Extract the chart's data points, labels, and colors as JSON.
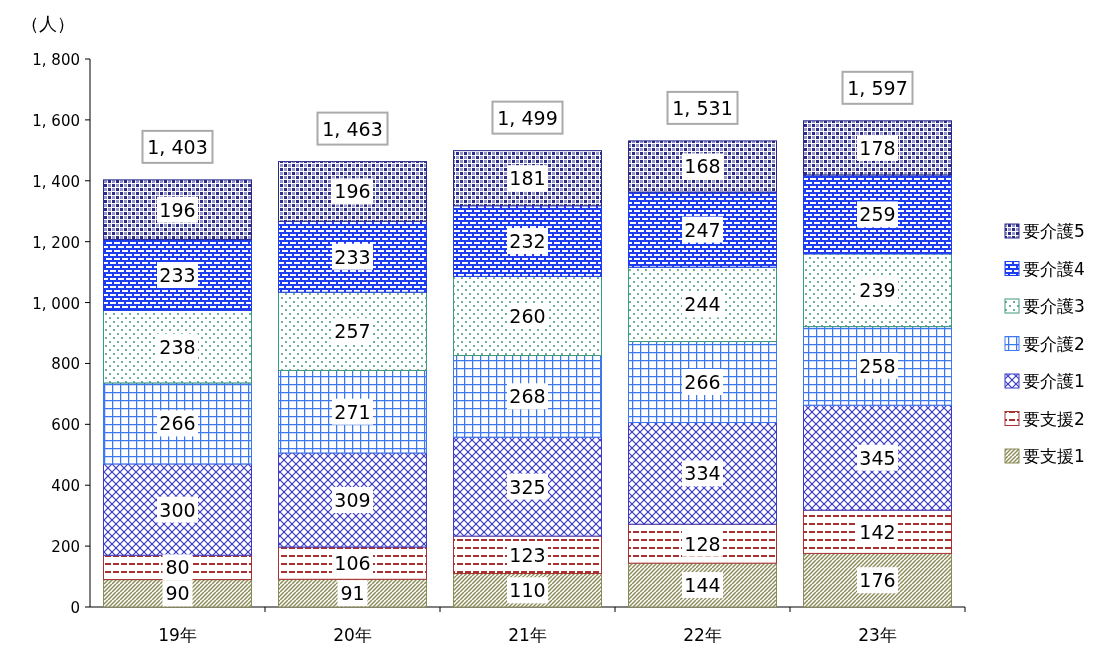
{
  "chart_data": {
    "type": "bar",
    "stacked": true,
    "ylabel": "（人）",
    "categories": [
      "19年",
      "20年",
      "21年",
      "22年",
      "23年"
    ],
    "series": [
      {
        "name": "要支援1",
        "color": "#8c8c5a",
        "values": [
          90,
          91,
          110,
          144,
          176
        ]
      },
      {
        "name": "要支援2",
        "color": "#a83232",
        "values": [
          80,
          106,
          123,
          128,
          142
        ]
      },
      {
        "name": "要介護1",
        "color": "#3a3ac8",
        "values": [
          300,
          309,
          325,
          334,
          345
        ]
      },
      {
        "name": "要介護2",
        "color": "#3c78f0",
        "values": [
          266,
          271,
          268,
          266,
          258
        ]
      },
      {
        "name": "要介護3",
        "color": "#3c9a78",
        "values": [
          238,
          257,
          260,
          244,
          239
        ]
      },
      {
        "name": "要介護4",
        "color": "#1e3cf0",
        "values": [
          233,
          233,
          232,
          247,
          259
        ]
      },
      {
        "name": "要介護5",
        "color": "#2a2a8c",
        "values": [
          196,
          196,
          181,
          168,
          178
        ]
      }
    ],
    "ylim": [
      0,
      1800
    ],
    "yticks": [
      0,
      200,
      400,
      600,
      800,
      {
        "value": 1000,
        "label": "1, 000"
      },
      {
        "value": 1200,
        "label": "1, 200"
      },
      {
        "value": 1400,
        "label": "1, 400"
      },
      {
        "value": 1600,
        "label": "1, 600"
      },
      {
        "value": 1800,
        "label": "1, 800"
      }
    ],
    "data_labels": true,
    "totals": [
      "1, 403",
      "1, 463",
      "1, 499",
      "1, 531",
      "1, 597"
    ],
    "legend": "right",
    "grid": false
  }
}
